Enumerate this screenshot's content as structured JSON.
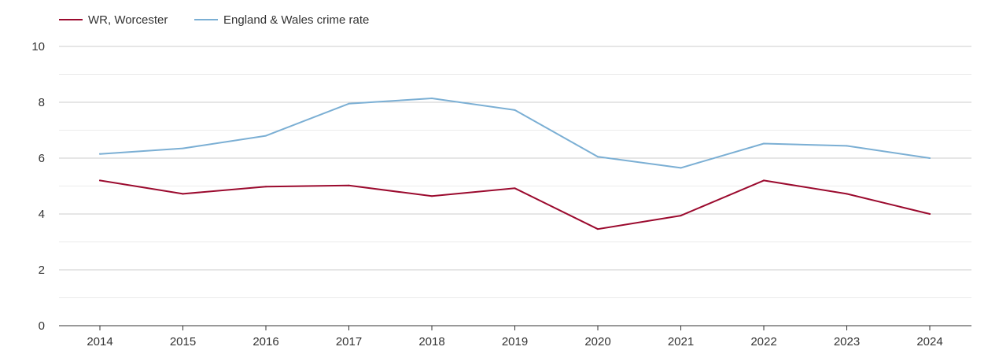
{
  "chart_data": {
    "type": "line",
    "title": "",
    "xlabel": "",
    "ylabel": "",
    "x": [
      "2014",
      "2015",
      "2016",
      "2017",
      "2018",
      "2019",
      "2020",
      "2021",
      "2022",
      "2023",
      "2024"
    ],
    "ylim": [
      0,
      10
    ],
    "y_ticks": [
      "0",
      "2",
      "4",
      "6",
      "8",
      "10"
    ],
    "grid": true,
    "legend_position": "top-left",
    "series": [
      {
        "name": "WR, Worcester",
        "color": "#9b0a2e",
        "values": [
          5.2,
          4.72,
          4.98,
          5.02,
          4.64,
          4.92,
          3.46,
          3.94,
          5.2,
          4.72,
          4.0
        ]
      },
      {
        "name": "England & Wales crime rate",
        "color": "#7bafd4",
        "values": [
          6.15,
          6.35,
          6.8,
          7.95,
          8.14,
          7.72,
          6.05,
          5.65,
          6.52,
          6.44,
          6.0
        ]
      }
    ]
  }
}
